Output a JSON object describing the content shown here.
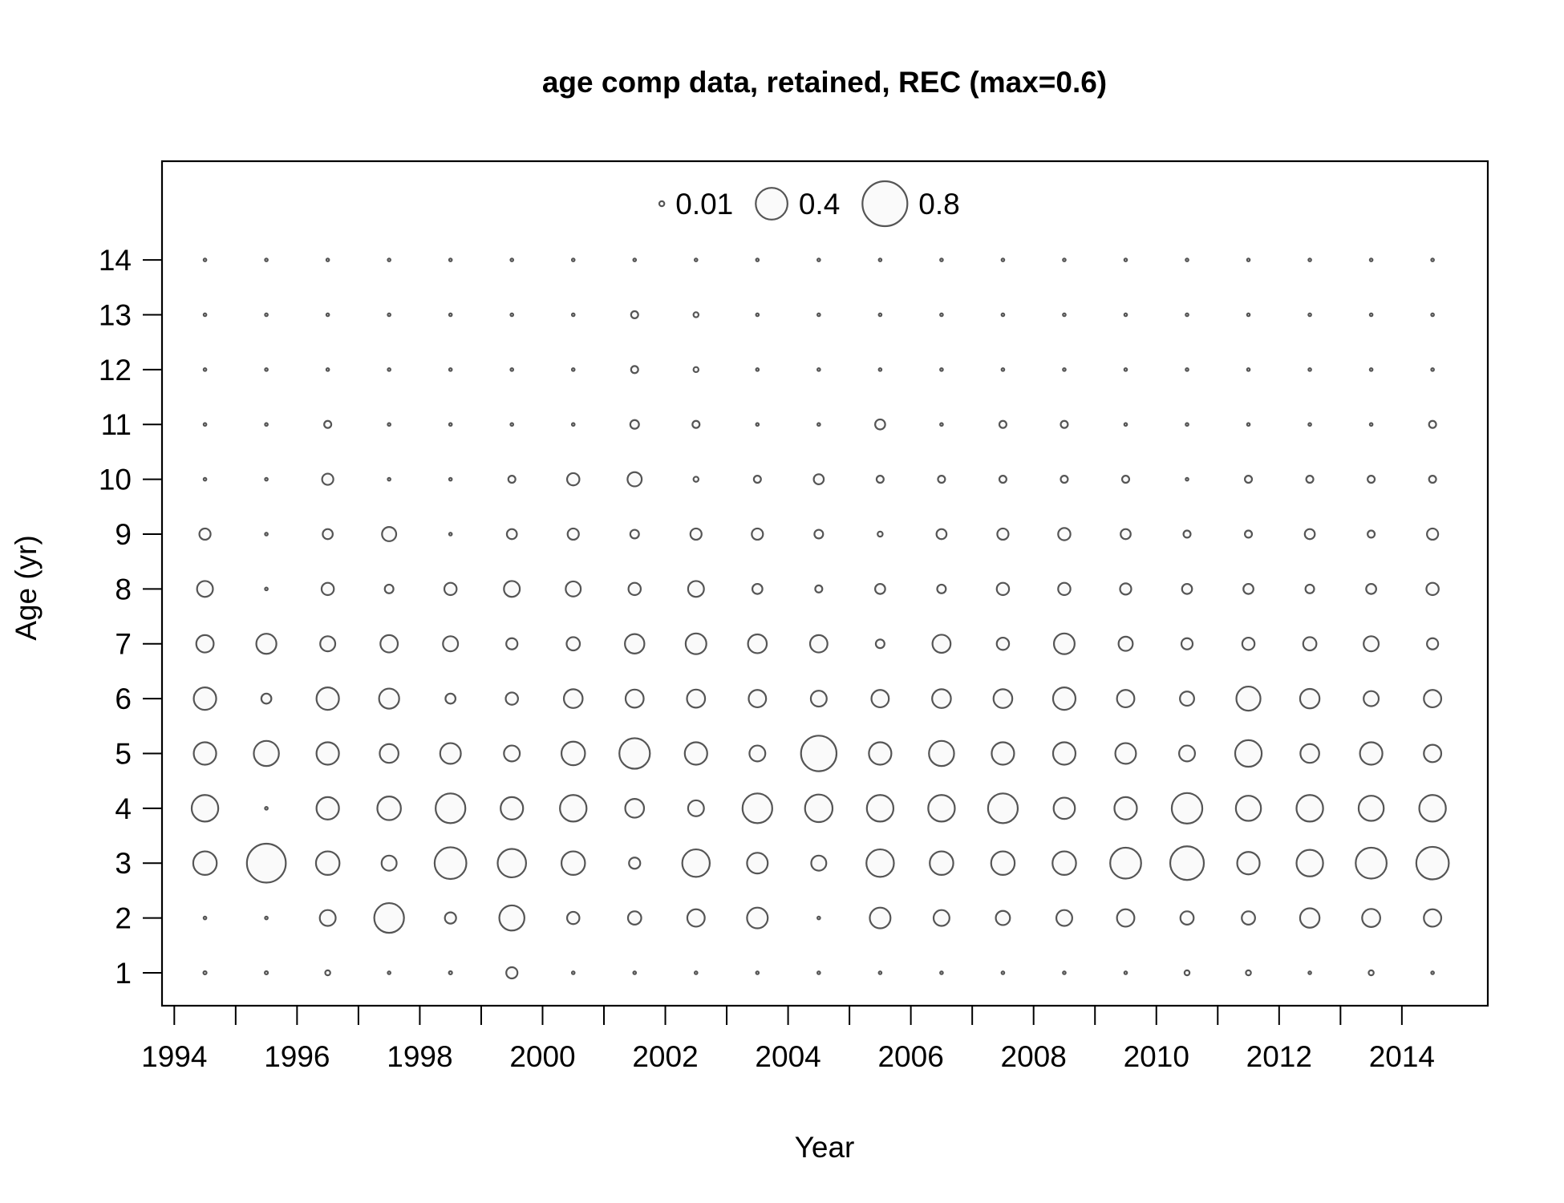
{
  "chart_data": {
    "type": "scatter",
    "title": "age comp data, retained, REC (max=0.6)",
    "xlabel": "Year",
    "ylabel": "Age (yr)",
    "xlim": [
      1993.8,
      2015.4
    ],
    "ylim": [
      0.4,
      15.8
    ],
    "x_ticks": [
      1994,
      1996,
      1998,
      2000,
      2002,
      2004,
      2006,
      2008,
      2010,
      2012,
      2014
    ],
    "y_ticks": [
      1,
      2,
      3,
      4,
      5,
      6,
      7,
      8,
      9,
      10,
      11,
      12,
      13,
      14
    ],
    "legend": {
      "placement": "top-center",
      "entries": [
        {
          "label": "0.01",
          "value": 0.01
        },
        {
          "label": "0.4",
          "value": 0.4
        },
        {
          "label": "0.8",
          "value": 0.8
        }
      ]
    },
    "marker_color": "#555555",
    "marker_fill": "#fafafa",
    "grid": false,
    "x": [
      1994.5,
      1995.5,
      1996.5,
      1997.5,
      1998.5,
      1999.5,
      2000.5,
      2001.5,
      2002.5,
      2003.5,
      2004.5,
      2005.5,
      2006.5,
      2007.5,
      2008.5,
      2009.5,
      2010.5,
      2011.5,
      2012.5,
      2013.5,
      2014.5
    ],
    "ages": [
      1,
      2,
      3,
      4,
      5,
      6,
      7,
      8,
      9,
      10,
      11,
      12,
      13,
      14
    ],
    "series": [
      {
        "age": 1,
        "values": [
          0.004,
          0.004,
          0.01,
          0.003,
          0.004,
          0.05,
          0.003,
          0.003,
          0.003,
          0.003,
          0.003,
          0.003,
          0.003,
          0.003,
          0.003,
          0.003,
          0.01,
          0.01,
          0.003,
          0.01,
          0.003
        ]
      },
      {
        "age": 2,
        "values": [
          0.003,
          0.003,
          0.1,
          0.35,
          0.05,
          0.25,
          0.06,
          0.07,
          0.12,
          0.17,
          0.003,
          0.17,
          0.1,
          0.08,
          0.1,
          0.12,
          0.07,
          0.07,
          0.15,
          0.13,
          0.12
        ]
      },
      {
        "age": 3,
        "values": [
          0.22,
          0.6,
          0.22,
          0.09,
          0.4,
          0.32,
          0.22,
          0.05,
          0.3,
          0.17,
          0.09,
          0.3,
          0.22,
          0.22,
          0.22,
          0.38,
          0.45,
          0.2,
          0.28,
          0.38,
          0.42
        ]
      },
      {
        "age": 4,
        "values": [
          0.28,
          0.003,
          0.2,
          0.22,
          0.35,
          0.2,
          0.28,
          0.14,
          0.1,
          0.35,
          0.3,
          0.28,
          0.28,
          0.35,
          0.18,
          0.2,
          0.37,
          0.25,
          0.28,
          0.25,
          0.28
        ]
      },
      {
        "age": 5,
        "values": [
          0.2,
          0.25,
          0.2,
          0.14,
          0.17,
          0.1,
          0.22,
          0.37,
          0.2,
          0.1,
          0.5,
          0.2,
          0.25,
          0.2,
          0.2,
          0.17,
          0.1,
          0.28,
          0.14,
          0.2,
          0.12
        ]
      },
      {
        "age": 6,
        "values": [
          0.2,
          0.04,
          0.2,
          0.16,
          0.04,
          0.06,
          0.14,
          0.13,
          0.13,
          0.12,
          0.1,
          0.12,
          0.14,
          0.14,
          0.2,
          0.12,
          0.08,
          0.23,
          0.15,
          0.09,
          0.12
        ]
      },
      {
        "age": 7,
        "values": [
          0.12,
          0.16,
          0.09,
          0.12,
          0.09,
          0.05,
          0.07,
          0.15,
          0.17,
          0.14,
          0.12,
          0.03,
          0.13,
          0.06,
          0.17,
          0.08,
          0.05,
          0.06,
          0.07,
          0.09,
          0.05
        ]
      },
      {
        "age": 8,
        "values": [
          0.1,
          0.003,
          0.06,
          0.03,
          0.06,
          0.1,
          0.09,
          0.06,
          0.1,
          0.04,
          0.02,
          0.04,
          0.03,
          0.06,
          0.06,
          0.05,
          0.04,
          0.04,
          0.03,
          0.04,
          0.06
        ]
      },
      {
        "age": 9,
        "values": [
          0.05,
          0.003,
          0.04,
          0.08,
          0.003,
          0.04,
          0.05,
          0.03,
          0.05,
          0.05,
          0.03,
          0.01,
          0.04,
          0.05,
          0.06,
          0.04,
          0.02,
          0.02,
          0.04,
          0.02,
          0.05
        ]
      },
      {
        "age": 10,
        "values": [
          0.003,
          0.003,
          0.05,
          0.003,
          0.003,
          0.02,
          0.06,
          0.08,
          0.01,
          0.02,
          0.04,
          0.02,
          0.02,
          0.02,
          0.02,
          0.02,
          0.003,
          0.02,
          0.02,
          0.02,
          0.02
        ]
      },
      {
        "age": 11,
        "values": [
          0.003,
          0.003,
          0.02,
          0.003,
          0.003,
          0.003,
          0.003,
          0.03,
          0.02,
          0.003,
          0.003,
          0.04,
          0.003,
          0.02,
          0.02,
          0.003,
          0.003,
          0.003,
          0.003,
          0.003,
          0.02
        ]
      },
      {
        "age": 12,
        "values": [
          0.003,
          0.003,
          0.003,
          0.003,
          0.003,
          0.003,
          0.003,
          0.02,
          0.01,
          0.003,
          0.003,
          0.003,
          0.003,
          0.003,
          0.003,
          0.003,
          0.003,
          0.003,
          0.003,
          0.003,
          0.003
        ]
      },
      {
        "age": 13,
        "values": [
          0.003,
          0.003,
          0.003,
          0.003,
          0.003,
          0.003,
          0.003,
          0.02,
          0.01,
          0.003,
          0.003,
          0.003,
          0.003,
          0.003,
          0.003,
          0.003,
          0.003,
          0.003,
          0.003,
          0.003,
          0.003
        ]
      },
      {
        "age": 14,
        "values": [
          0.003,
          0.003,
          0.003,
          0.003,
          0.003,
          0.003,
          0.003,
          0.003,
          0.003,
          0.003,
          0.003,
          0.003,
          0.003,
          0.003,
          0.003,
          0.003,
          0.003,
          0.003,
          0.003,
          0.003,
          0.003
        ]
      }
    ]
  }
}
